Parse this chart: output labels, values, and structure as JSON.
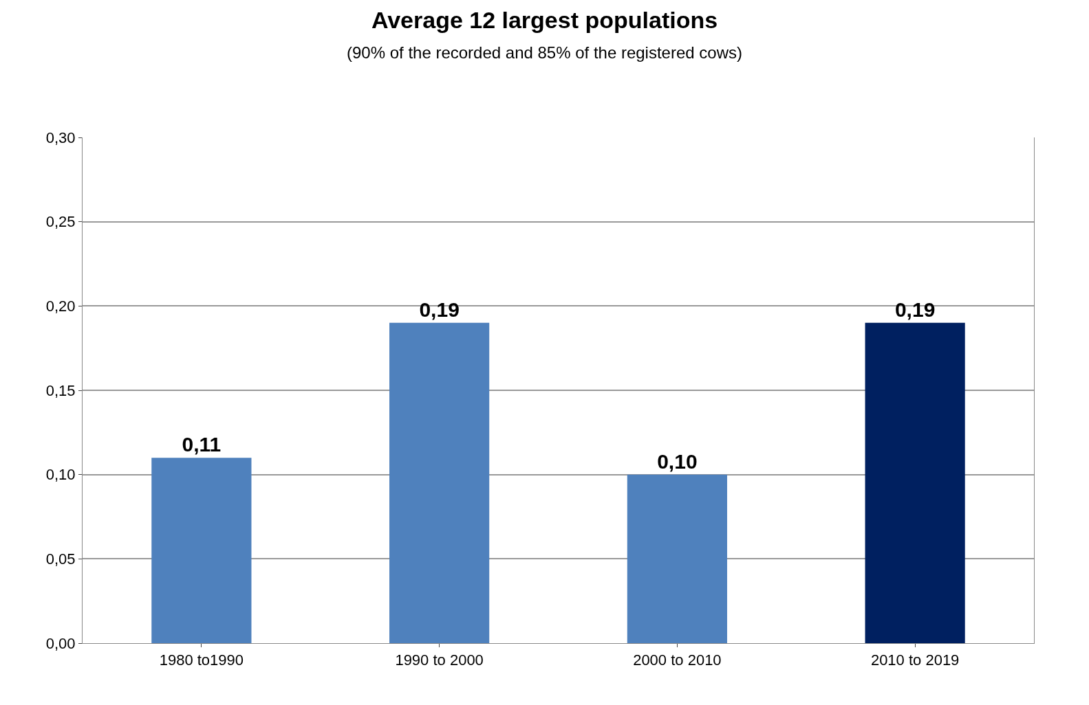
{
  "chart_data": {
    "type": "bar",
    "title": "Average 12 largest populations",
    "subtitle": "(90% of the recorded and 85% of the registered cows)",
    "categories": [
      "1980 to1990",
      "1990 to 2000",
      "2000 to 2010",
      "2010 to 2019"
    ],
    "values": [
      0.11,
      0.19,
      0.1,
      0.19
    ],
    "value_labels": [
      "0,11",
      "0,19",
      "0,10",
      "0,19"
    ],
    "colors": [
      "#4f81bd",
      "#4f81bd",
      "#4f81bd",
      "#002060"
    ],
    "ylim": [
      0,
      0.3
    ],
    "yticks": [
      {
        "value": 0,
        "label": "0,00"
      },
      {
        "value": 0.05,
        "label": "0,05"
      },
      {
        "value": 0.1,
        "label": "0,10"
      },
      {
        "value": 0.15,
        "label": "0,15"
      },
      {
        "value": 0.2,
        "label": "0,20"
      },
      {
        "value": 0.25,
        "label": "0,25"
      },
      {
        "value": 0.3,
        "label": "0,30"
      }
    ],
    "grid": "y"
  }
}
